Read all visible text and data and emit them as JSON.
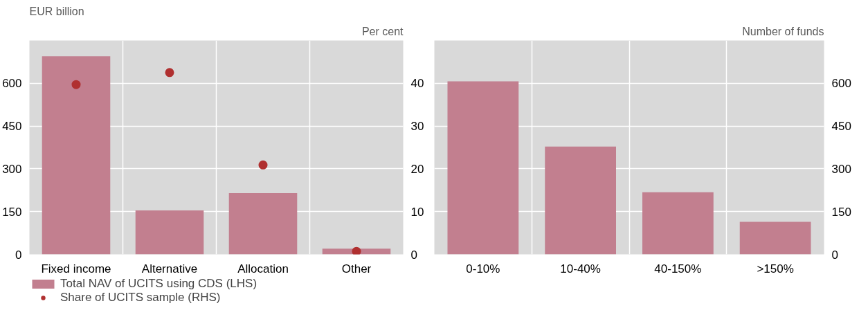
{
  "chart_data": [
    {
      "type": "bar",
      "categories": [
        "Fixed income",
        "Alternative",
        "Allocation",
        "Other"
      ],
      "ylabel": "EUR billion",
      "y2label": "Per cent",
      "ylim": [
        0,
        750
      ],
      "yticks": [
        0,
        150,
        300,
        450,
        600
      ],
      "y2lim": [
        0,
        50
      ],
      "y2ticks": [
        0,
        10,
        20,
        30,
        40
      ],
      "grid": true,
      "legend": "bottom left",
      "series": [
        {
          "name": "Total NAV of UCITS using CDS (LHS)",
          "color": "#c27f8f",
          "values": [
            695,
            154,
            215,
            20
          ]
        },
        {
          "name": "Share of UCITS sample (RHS)",
          "type": "scatter",
          "axis": "y2",
          "marker": "circle",
          "color": "#b03030",
          "values": [
            39.7,
            42.5,
            20.9,
            0.7
          ]
        }
      ]
    },
    {
      "type": "bar",
      "categories": [
        "0-10%",
        "10-40%",
        "40-150%",
        ">150%"
      ],
      "y2label": "Number of funds",
      "y2lim": [
        0,
        750
      ],
      "y2ticks": [
        0,
        150,
        300,
        450,
        600
      ],
      "grid": true,
      "series": [
        {
          "axis": "y2",
          "color": "#c27f8f",
          "values": [
            607,
            378,
            218,
            114
          ]
        }
      ]
    }
  ]
}
